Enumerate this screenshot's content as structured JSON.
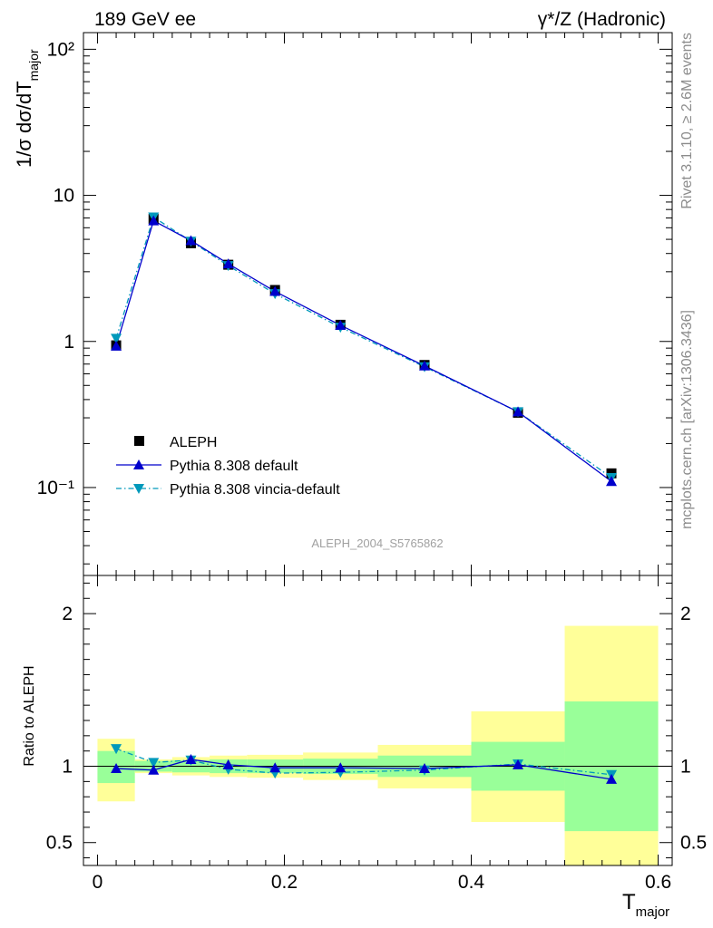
{
  "header": {
    "left": "189 GeV ee",
    "right": "γ*/Z (Hadronic)"
  },
  "side_labels": {
    "upper": "Rivet 3.1.10, ≥ 2.6M events",
    "lower": "mcplots.cern.ch [arXiv:1306.3436]"
  },
  "analysis_id": "ALEPH_2004_S5765862",
  "colors": {
    "data": "#000000",
    "pythia_default": "#0000cc",
    "pythia_vincia": "#0099bb",
    "band_inner": "#99ff99",
    "band_outer": "#ffff99"
  },
  "chart_data": [
    {
      "type": "scatter",
      "panel": "main",
      "ylabel": "1/σ dσ/dT major",
      "y_scale": "log",
      "ylim": [
        0.025,
        130
      ],
      "xlim": [
        -0.015,
        0.615
      ],
      "y_tick_labels": [
        "10⁻¹",
        "1",
        "10",
        "10²"
      ],
      "legend_position": "lower-left",
      "series": [
        {
          "name": "ALEPH",
          "x": [
            0.02,
            0.06,
            0.1,
            0.14,
            0.19,
            0.26,
            0.35,
            0.45,
            0.55
          ],
          "y": [
            0.94,
            6.9,
            4.7,
            3.35,
            2.25,
            1.3,
            0.69,
            0.325,
            0.125
          ]
        },
        {
          "name": "Pythia 8.308 default",
          "x": [
            0.02,
            0.06,
            0.1,
            0.14,
            0.19,
            0.26,
            0.35,
            0.45,
            0.55
          ],
          "y": [
            0.93,
            6.7,
            4.9,
            3.4,
            2.2,
            1.29,
            0.68,
            0.33,
            0.11
          ]
        },
        {
          "name": "Pythia 8.308 vincia-default",
          "x": [
            0.02,
            0.06,
            0.1,
            0.14,
            0.19,
            0.26,
            0.35,
            0.45,
            0.55
          ],
          "y": [
            1.05,
            7.1,
            4.85,
            3.3,
            2.12,
            1.25,
            0.67,
            0.33,
            0.117
          ]
        }
      ]
    },
    {
      "type": "line",
      "panel": "ratio",
      "xlabel": "T major",
      "ylabel": "Ratio to ALEPH",
      "ylim": [
        0.35,
        2.25
      ],
      "xlim": [
        -0.015,
        0.615
      ],
      "x_tick_labels": [
        "0",
        "0.2",
        "0.4",
        "0.6"
      ],
      "y_tick_labels": [
        "0.5",
        "1",
        "2"
      ],
      "bins": [
        {
          "lo": 0.0,
          "hi": 0.04,
          "inner": [
            0.89,
            1.1
          ],
          "outer": [
            0.77,
            1.18
          ]
        },
        {
          "lo": 0.04,
          "hi": 0.08,
          "inner": [
            0.965,
            1.035
          ],
          "outer": [
            0.955,
            1.045
          ]
        },
        {
          "lo": 0.08,
          "hi": 0.12,
          "inner": [
            0.96,
            1.04
          ],
          "outer": [
            0.94,
            1.06
          ]
        },
        {
          "lo": 0.12,
          "hi": 0.16,
          "inner": [
            0.955,
            1.045
          ],
          "outer": [
            0.93,
            1.07
          ]
        },
        {
          "lo": 0.16,
          "hi": 0.22,
          "inner": [
            0.955,
            1.045
          ],
          "outer": [
            0.925,
            1.075
          ]
        },
        {
          "lo": 0.22,
          "hi": 0.3,
          "inner": [
            0.95,
            1.05
          ],
          "outer": [
            0.91,
            1.09
          ]
        },
        {
          "lo": 0.3,
          "hi": 0.4,
          "inner": [
            0.93,
            1.07
          ],
          "outer": [
            0.855,
            1.14
          ]
        },
        {
          "lo": 0.4,
          "hi": 0.5,
          "inner": [
            0.84,
            1.16
          ],
          "outer": [
            0.635,
            1.36
          ]
        },
        {
          "lo": 0.5,
          "hi": 0.6,
          "inner": [
            0.575,
            1.425
          ],
          "outer": [
            0.35,
            1.92
          ]
        }
      ],
      "series": [
        {
          "name": "Pythia 8.308 default",
          "x": [
            0.02,
            0.06,
            0.1,
            0.14,
            0.19,
            0.26,
            0.35,
            0.45,
            0.55
          ],
          "y": [
            0.985,
            0.975,
            1.045,
            1.01,
            0.99,
            0.99,
            0.985,
            1.01,
            0.915
          ]
        },
        {
          "name": "Pythia 8.308 vincia-default",
          "x": [
            0.02,
            0.06,
            0.1,
            0.14,
            0.19,
            0.26,
            0.35,
            0.45,
            0.55
          ],
          "y": [
            1.115,
            1.025,
            1.04,
            0.98,
            0.955,
            0.96,
            0.975,
            1.015,
            0.945
          ]
        }
      ]
    }
  ]
}
